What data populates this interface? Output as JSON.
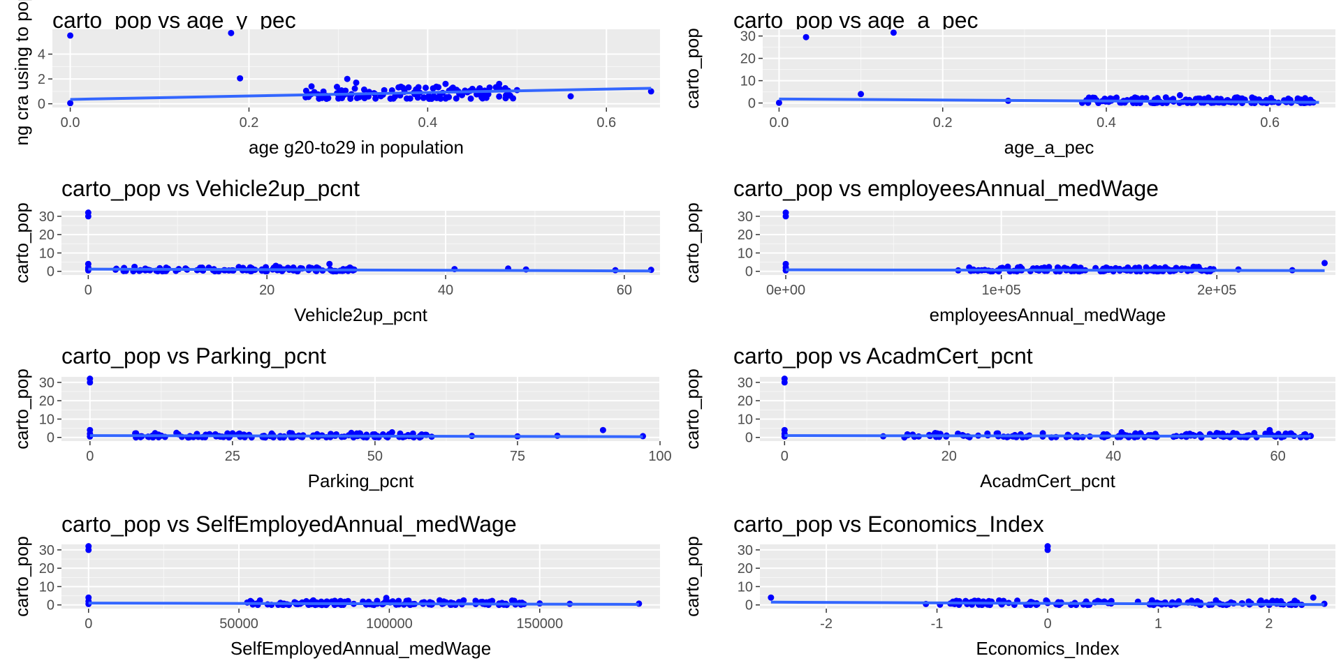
{
  "colors": {
    "point": "#0000ff",
    "trend": "#3366ff",
    "panel": "#ebebeb",
    "grid": "#ffffff"
  },
  "chart_data": [
    {
      "type": "scatter",
      "title": "carto_pop vs age_y_pec",
      "xlabel": "age g20-to29 in population",
      "ylabel": "ng cra using to pop",
      "xlim": [
        -0.02,
        0.66
      ],
      "ylim": [
        -0.3,
        6.0
      ],
      "xticks": [
        0,
        0.2,
        0.4,
        0.6
      ],
      "xtick_labels": [
        "0.0",
        "0.2",
        "0.4",
        "0.6"
      ],
      "yticks": [
        0,
        2,
        4
      ],
      "ytick_labels": [
        "0",
        "2",
        "4"
      ],
      "points": [
        [
          0,
          5.5
        ],
        [
          0,
          0.05
        ],
        [
          0.18,
          5.7
        ],
        [
          0.19,
          2.05
        ],
        [
          0.27,
          1.4
        ],
        [
          0.31,
          2.0
        ],
        [
          0.32,
          1.7
        ],
        [
          0.42,
          1.6
        ],
        [
          0.45,
          1.2
        ],
        [
          0.48,
          1.6
        ],
        [
          0.5,
          1.1
        ],
        [
          0.56,
          0.6
        ],
        [
          0.65,
          1.0
        ]
      ],
      "band": {
        "x_range": [
          0.26,
          0.5
        ],
        "y_range": [
          0.4,
          1.4
        ],
        "count": 120
      },
      "trend": [
        [
          0,
          0.35
        ],
        [
          0.65,
          1.25
        ]
      ]
    },
    {
      "type": "scatter",
      "title": "carto_pop vs age_a_pec",
      "xlabel": "age_a_pec",
      "ylabel": "carto_pop",
      "xlim": [
        -0.02,
        0.68
      ],
      "ylim": [
        -2,
        33
      ],
      "xticks": [
        0,
        0.2,
        0.4,
        0.6
      ],
      "xtick_labels": [
        "0.0",
        "0.2",
        "0.4",
        "0.6"
      ],
      "yticks": [
        0,
        10,
        20,
        30
      ],
      "ytick_labels": [
        "0",
        "10",
        "20",
        "30"
      ],
      "points": [
        [
          0.0,
          0.1
        ],
        [
          0.033,
          29.5
        ],
        [
          0.1,
          4.0
        ],
        [
          0.14,
          31.5
        ],
        [
          0.28,
          1.0
        ],
        [
          0.49,
          3.5
        ],
        [
          0.56,
          2.5
        ]
      ],
      "band": {
        "x_range": [
          0.37,
          0.66
        ],
        "y_range": [
          0,
          2.5
        ],
        "count": 140
      },
      "trend": [
        [
          0,
          1.8
        ],
        [
          0.66,
          0.3
        ]
      ]
    },
    {
      "type": "scatter",
      "title": "carto_pop vs Vehicle2up_pcnt",
      "xlabel": "Vehicle2up_pcnt",
      "ylabel": "carto_pop",
      "xlim": [
        -3,
        64
      ],
      "ylim": [
        -2,
        33
      ],
      "xticks": [
        0,
        20,
        40,
        60
      ],
      "xtick_labels": [
        "0",
        "20",
        "40",
        "60"
      ],
      "yticks": [
        0,
        10,
        20,
        30
      ],
      "ytick_labels": [
        "0",
        "10",
        "20",
        "30"
      ],
      "points": [
        [
          0,
          30
        ],
        [
          0,
          32
        ],
        [
          0,
          4
        ],
        [
          0,
          2
        ],
        [
          0,
          0.5
        ],
        [
          0,
          1
        ],
        [
          21,
          3
        ],
        [
          27,
          4
        ],
        [
          41,
          1.2
        ],
        [
          47,
          1.5
        ],
        [
          49,
          1.0
        ],
        [
          59,
          0.6
        ],
        [
          63,
          0.8
        ]
      ],
      "band": {
        "x_range": [
          3,
          30
        ],
        "y_range": [
          0,
          2.5
        ],
        "count": 120
      },
      "trend": [
        [
          0,
          1.2
        ],
        [
          63,
          0.2
        ]
      ]
    },
    {
      "type": "scatter",
      "title": "carto_pop vs employeesAnnual_medWage",
      "xlabel": "employeesAnnual_medWage",
      "ylabel": "carto_pop",
      "xlim": [
        -12000,
        255000
      ],
      "ylim": [
        -2,
        33
      ],
      "xticks": [
        0,
        100000,
        200000
      ],
      "xtick_labels": [
        "0e+00",
        "1e+05",
        "2e+05"
      ],
      "yticks": [
        0,
        10,
        20,
        30
      ],
      "ytick_labels": [
        "0",
        "10",
        "20",
        "30"
      ],
      "points": [
        [
          0,
          30
        ],
        [
          0,
          32
        ],
        [
          0,
          4
        ],
        [
          0,
          2
        ],
        [
          0,
          0.5
        ],
        [
          80000,
          0.5
        ],
        [
          103000,
          2.5
        ],
        [
          210000,
          1.0
        ],
        [
          235000,
          0.6
        ],
        [
          250000,
          4.5
        ]
      ],
      "band": {
        "x_range": [
          85000,
          200000
        ],
        "y_range": [
          0,
          2.5
        ],
        "count": 130
      },
      "trend": [
        [
          0,
          0.8
        ],
        [
          250000,
          0.4
        ]
      ]
    },
    {
      "type": "scatter",
      "title": "carto_pop vs Parking_pcnt",
      "xlabel": "Parking_pcnt",
      "ylabel": "carto_pop",
      "xlim": [
        -5,
        100
      ],
      "ylim": [
        -2,
        33
      ],
      "xticks": [
        0,
        25,
        50,
        75,
        100
      ],
      "xtick_labels": [
        "0",
        "25",
        "50",
        "75",
        "100"
      ],
      "yticks": [
        0,
        10,
        20,
        30
      ],
      "ytick_labels": [
        "0",
        "10",
        "20",
        "30"
      ],
      "points": [
        [
          0,
          30
        ],
        [
          0,
          32
        ],
        [
          0,
          4
        ],
        [
          0,
          2
        ],
        [
          0,
          0.5
        ],
        [
          53,
          2.8
        ],
        [
          90,
          4.0
        ],
        [
          67,
          0.8
        ],
        [
          75,
          0.6
        ],
        [
          82,
          0.9
        ],
        [
          97,
          0.7
        ]
      ],
      "band": {
        "x_range": [
          7,
          60
        ],
        "y_range": [
          0,
          2.5
        ],
        "count": 130
      },
      "trend": [
        [
          0,
          1.0
        ],
        [
          97,
          0.4
        ]
      ]
    },
    {
      "type": "scatter",
      "title": "carto_pop vs AcadmCert_pcnt",
      "xlabel": "AcadmCert_pcnt",
      "ylabel": "carto_pop",
      "xlim": [
        -3,
        67
      ],
      "ylim": [
        -2,
        33
      ],
      "xticks": [
        0,
        20,
        40,
        60
      ],
      "xtick_labels": [
        "0",
        "20",
        "40",
        "60"
      ],
      "yticks": [
        0,
        10,
        20,
        30
      ],
      "ytick_labels": [
        "0",
        "10",
        "20",
        "30"
      ],
      "points": [
        [
          0,
          30
        ],
        [
          0,
          32
        ],
        [
          0,
          4
        ],
        [
          0,
          2
        ],
        [
          0,
          0.5
        ],
        [
          12,
          0.6
        ],
        [
          41,
          2.8
        ],
        [
          59,
          4.0
        ],
        [
          64,
          0.8
        ]
      ],
      "band": {
        "x_range": [
          14,
          64
        ],
        "y_range": [
          0,
          2.5
        ],
        "count": 140
      },
      "trend": [
        [
          0,
          1.0
        ],
        [
          64,
          0.6
        ]
      ]
    },
    {
      "type": "scatter",
      "title": "carto_pop vs SelfEmployedAnnual_medWage",
      "xlabel": "SelfEmployedAnnual_medWage",
      "ylabel": "carto_pop",
      "xlim": [
        -9000,
        190000
      ],
      "ylim": [
        -2,
        33
      ],
      "xticks": [
        0,
        50000,
        100000,
        150000
      ],
      "xtick_labels": [
        "0",
        "50000",
        "100000",
        "150000"
      ],
      "yticks": [
        0,
        10,
        20,
        30
      ],
      "ytick_labels": [
        "0",
        "10",
        "20",
        "30"
      ],
      "points": [
        [
          0,
          30
        ],
        [
          0,
          32
        ],
        [
          0,
          4
        ],
        [
          0,
          2
        ],
        [
          0,
          0.5
        ],
        [
          99000,
          3.8
        ],
        [
          150000,
          0.8
        ],
        [
          160000,
          0.6
        ],
        [
          183000,
          0.7
        ]
      ],
      "band": {
        "x_range": [
          52000,
          145000
        ],
        "y_range": [
          0,
          2.5
        ],
        "count": 140
      },
      "trend": [
        [
          0,
          1.0
        ],
        [
          183000,
          0.3
        ]
      ]
    },
    {
      "type": "scatter",
      "title": "carto_pop vs Economics_Index",
      "xlabel": "Economics_Index",
      "ylabel": "carto_pop",
      "xlim": [
        -2.6,
        2.6
      ],
      "ylim": [
        -2,
        33
      ],
      "xticks": [
        -2,
        -1,
        0,
        1,
        2
      ],
      "xtick_labels": [
        "-2",
        "-1",
        "0",
        "1",
        "2"
      ],
      "yticks": [
        0,
        10,
        20,
        30
      ],
      "ytick_labels": [
        "0",
        "10",
        "20",
        "30"
      ],
      "points": [
        [
          -2.5,
          4.0
        ],
        [
          0,
          30
        ],
        [
          0,
          32
        ],
        [
          0,
          1
        ],
        [
          2.4,
          4.0
        ],
        [
          2.5,
          0.6
        ],
        [
          -1.1,
          0.5
        ]
      ],
      "band": {
        "x_range": [
          -1.0,
          2.3
        ],
        "y_range": [
          0,
          2.5
        ],
        "count": 150
      },
      "trend": [
        [
          -2.5,
          1.5
        ],
        [
          2.5,
          0.2
        ]
      ]
    }
  ]
}
